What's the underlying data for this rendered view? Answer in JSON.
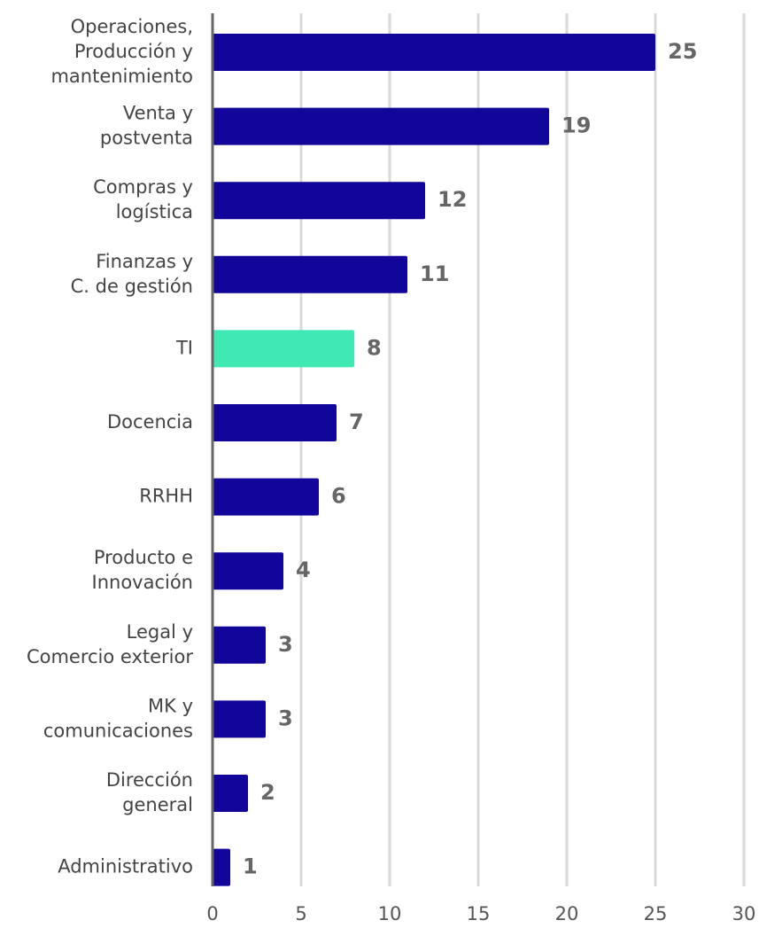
{
  "chart_data": {
    "type": "barh",
    "categories": [
      "Operaciones,\nProducción y\nmantenimiento",
      "Venta y\npostventa",
      "Compras y\nlogística",
      "Finanzas y\nC. de gestión",
      "TI",
      "Docencia",
      "RRHH",
      "Producto e\nInnovación",
      "Legal y\nComercio exterior",
      "MK y\ncomunicaciones",
      "Dirección\ngeneral",
      "Administrativo"
    ],
    "values": [
      25,
      19,
      12,
      11,
      8,
      7,
      6,
      4,
      3,
      3,
      2,
      1
    ],
    "colors": [
      "#12069a",
      "#12069a",
      "#12069a",
      "#12069a",
      "#40e8b4",
      "#12069a",
      "#12069a",
      "#12069a",
      "#12069a",
      "#12069a",
      "#12069a",
      "#12069a"
    ],
    "xlim": [
      0,
      30
    ],
    "xticks": [
      0,
      5,
      10,
      15,
      20,
      25,
      30
    ],
    "grid": true
  }
}
